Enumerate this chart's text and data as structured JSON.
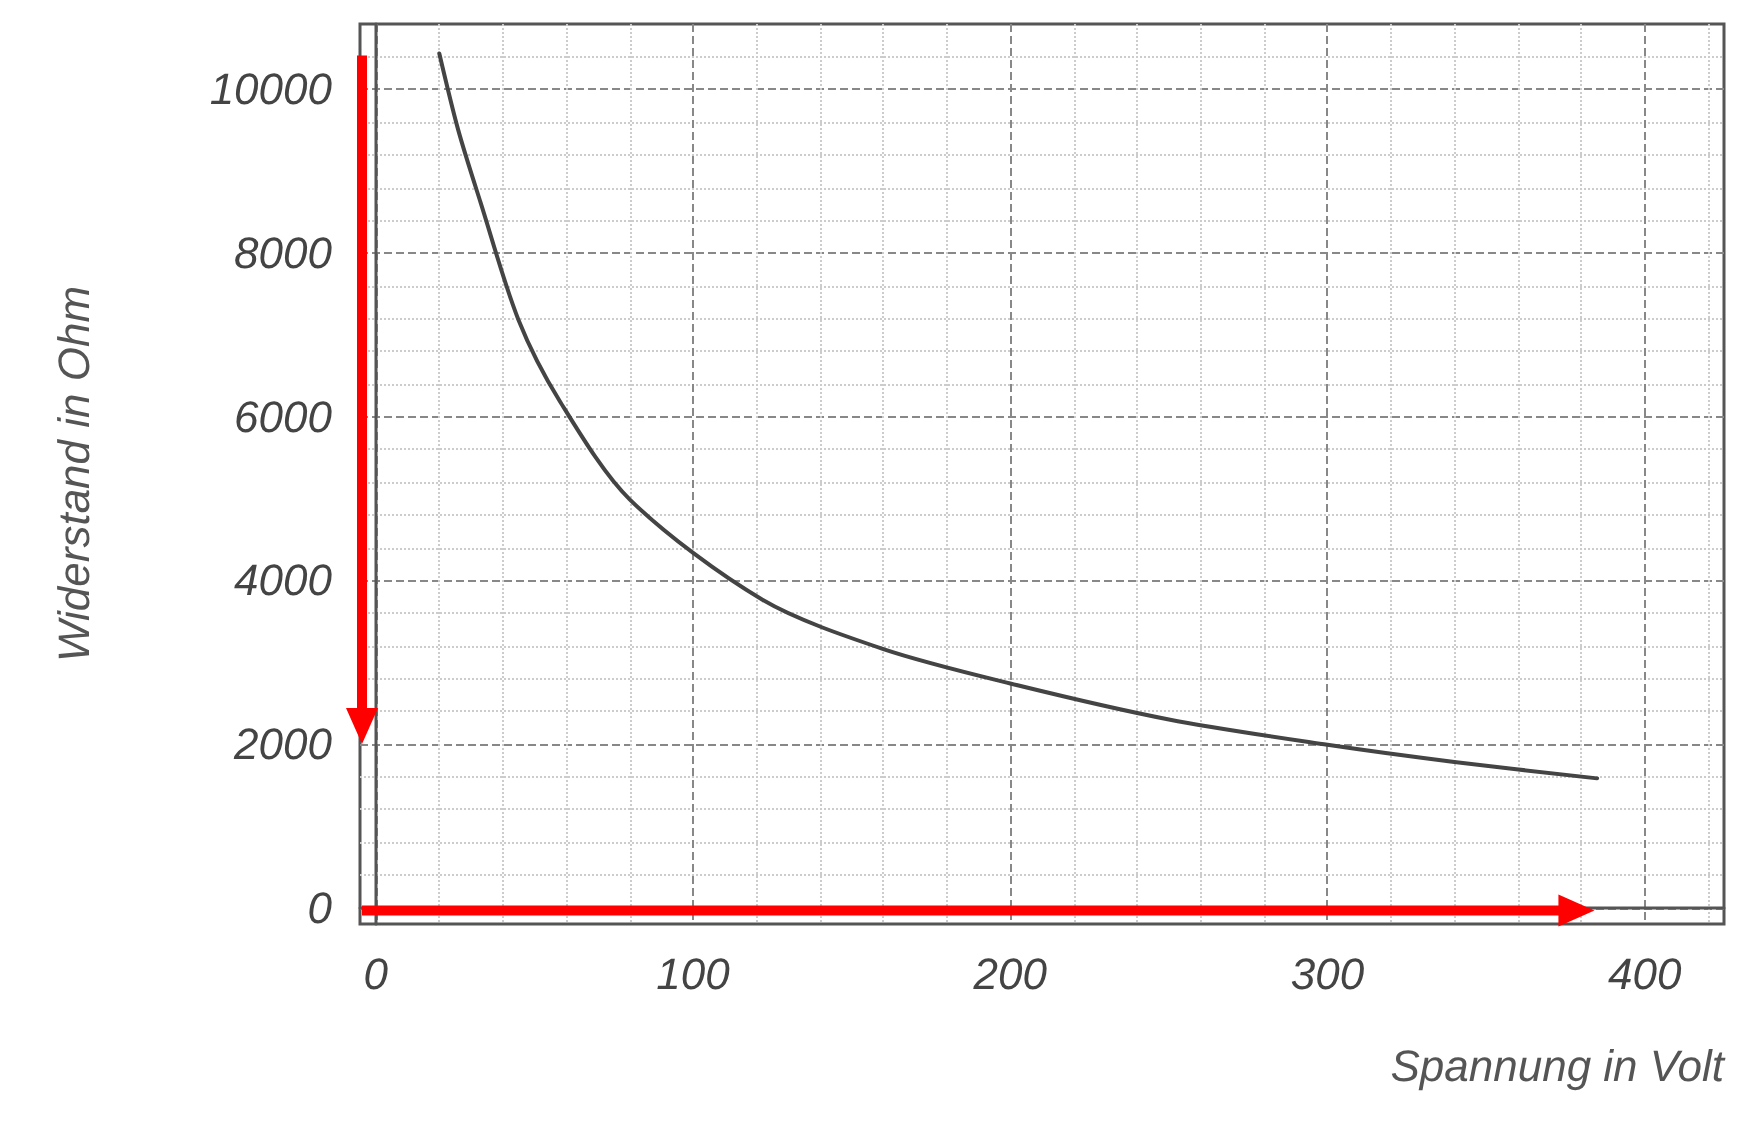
{
  "chart_data": {
    "type": "line",
    "xlabel": "Spannung in Volt",
    "ylabel": "Widerstand in Ohm",
    "x": [
      20,
      26,
      33,
      45,
      58,
      80,
      122,
      160,
      200,
      250,
      300,
      340,
      385
    ],
    "series": [
      {
        "color": "#444444",
        "values": [
          10440,
          9500,
          8620,
          7180,
          6190,
          4990,
          3760,
          3160,
          2740,
          2300,
          1990,
          1780,
          1580
        ]
      }
    ],
    "xlim": [
      -5,
      425
    ],
    "xticks": [
      0,
      100,
      200,
      300,
      400
    ],
    "ylim": [
      -200,
      10800
    ],
    "yticks": [
      0,
      2000,
      4000,
      6000,
      8000,
      10000
    ],
    "grid": true,
    "marker": "none"
  }
}
